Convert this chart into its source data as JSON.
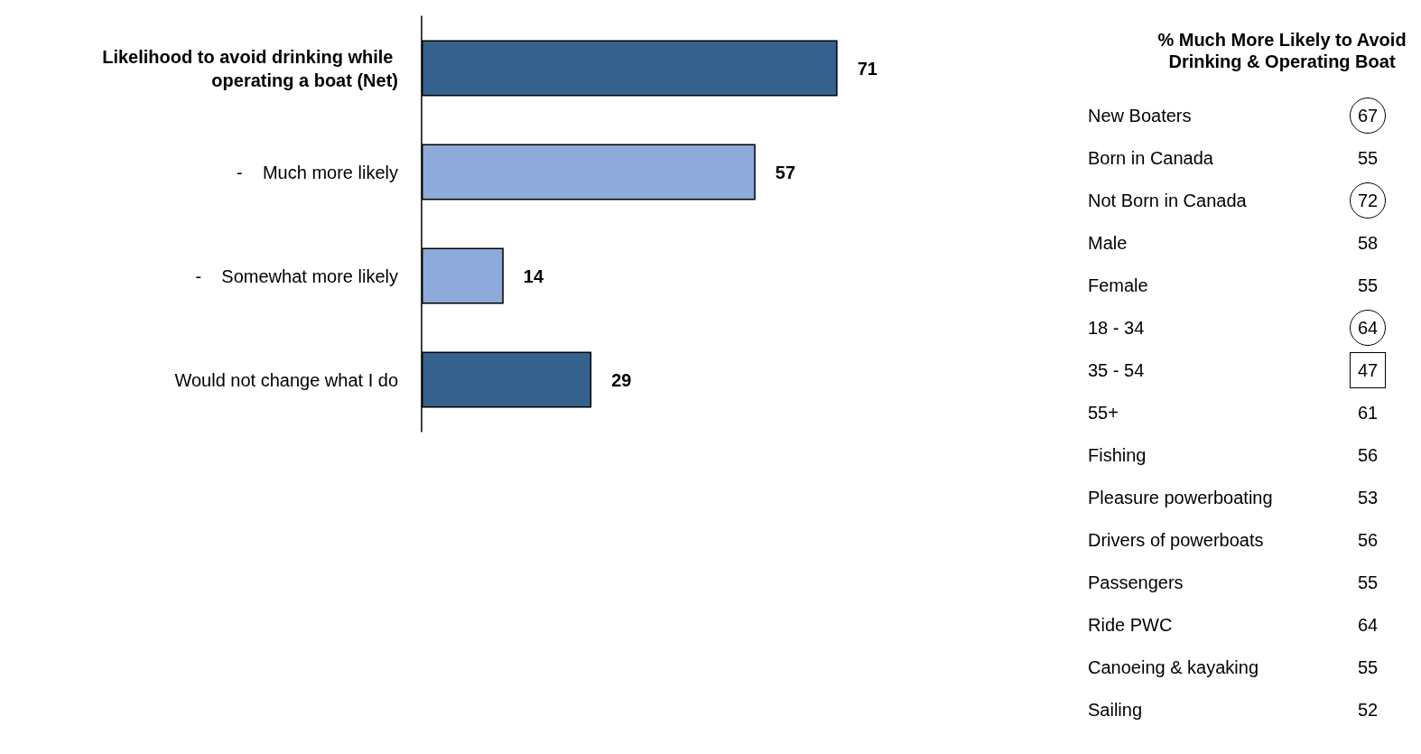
{
  "chart_data": [
    {
      "type": "bar",
      "orientation": "horizontal",
      "categories": [
        "Likelihood to avoid drinking while operating a boat (Net)",
        "-    Much more likely",
        "-    Somewhat more likely",
        "Would not change what I do"
      ],
      "values": [
        71,
        57,
        14,
        29
      ],
      "colors": [
        "#35618f",
        "#8eaadb",
        "#8eaadb",
        "#35618f"
      ],
      "data_labels": true
    },
    {
      "type": "other",
      "title": "% Much More Likely to Avoid Drinking & Operating Boat",
      "categories": [
        "New Boaters",
        "Born in Canada",
        "Not Born in Canada",
        "Male",
        "Female",
        "18 - 34",
        "35 - 54",
        "55+",
        "Fishing",
        "Pleasure powerboating",
        "Drivers of powerboats",
        "Passengers",
        "Ride PWC",
        "Canoeing & kayaking",
        "Sailing"
      ],
      "values": [
        67,
        55,
        72,
        58,
        55,
        64,
        47,
        61,
        56,
        53,
        56,
        55,
        64,
        55,
        52
      ],
      "data_labels": true
    }
  ]
}
